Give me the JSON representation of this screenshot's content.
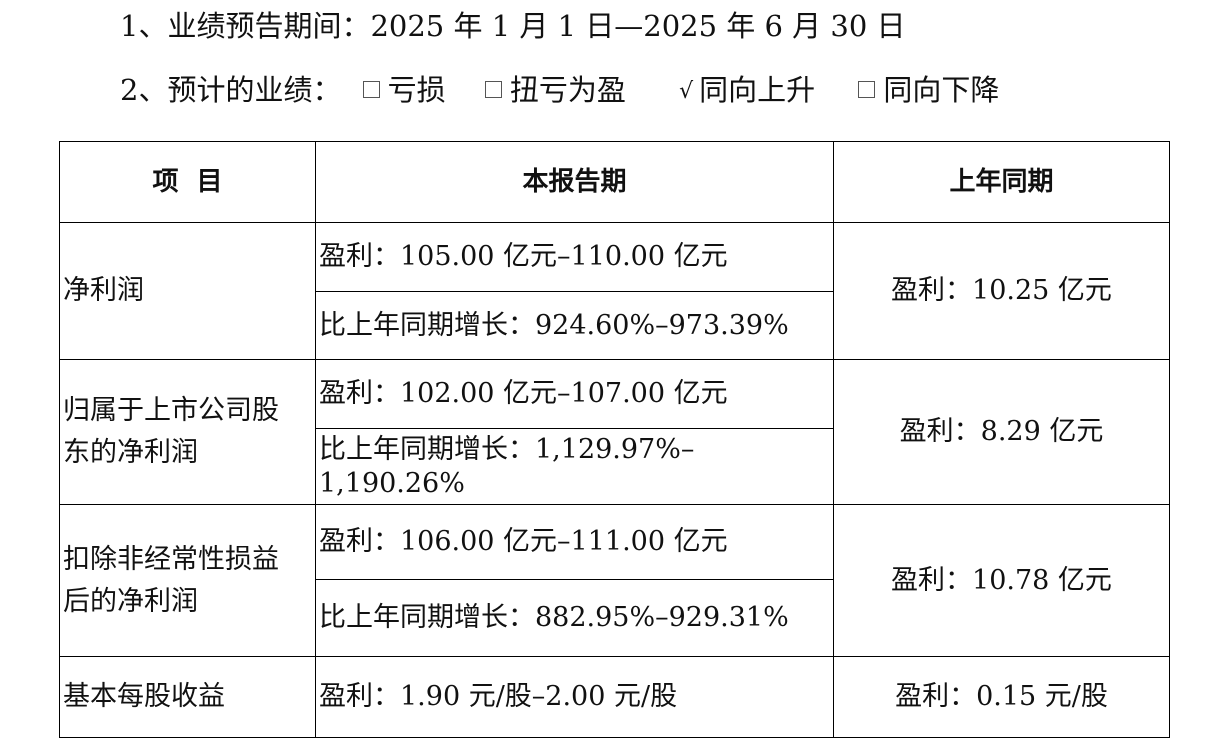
{
  "header": {
    "line1": "1、业绩预告期间：2025 年 1 月 1 日—2025 年 6 月 30 日",
    "line2_label": "2、预计的业绩：",
    "options": [
      {
        "label": "亏损",
        "checked": false
      },
      {
        "label": "扭亏为盈",
        "checked": false
      },
      {
        "label": "同向上升",
        "checked": true
      },
      {
        "label": "同向下降",
        "checked": false
      }
    ],
    "check_mark": "√"
  },
  "table": {
    "headers": [
      "项  目",
      "本报告期",
      "上年同期"
    ],
    "rows": [
      {
        "item": "净利润",
        "current_profit": "盈利：105.00 亿元–110.00 亿元",
        "current_growth": "比上年同期增长：924.60%–973.39%",
        "previous": "盈利：10.25 亿元"
      },
      {
        "item_line1": "归属于上市公司股",
        "item_line2": "东的净利润",
        "current_profit": "盈利：102.00 亿元–107.00 亿元",
        "current_growth": "比上年同期增长：1,129.97%–1,190.26%",
        "previous": "盈利：8.29 亿元"
      },
      {
        "item_line1": "扣除非经常性损益",
        "item_line2": "后的净利润",
        "current_profit": "盈利：106.00 亿元–111.00 亿元",
        "current_growth": "比上年同期增长：882.95%–929.31%",
        "previous": "盈利：10.78 亿元"
      },
      {
        "item": "基本每股收益",
        "current_profit": "盈利：1.90 元/股–2.00 元/股",
        "previous": "盈利：0.15 元/股"
      }
    ]
  }
}
